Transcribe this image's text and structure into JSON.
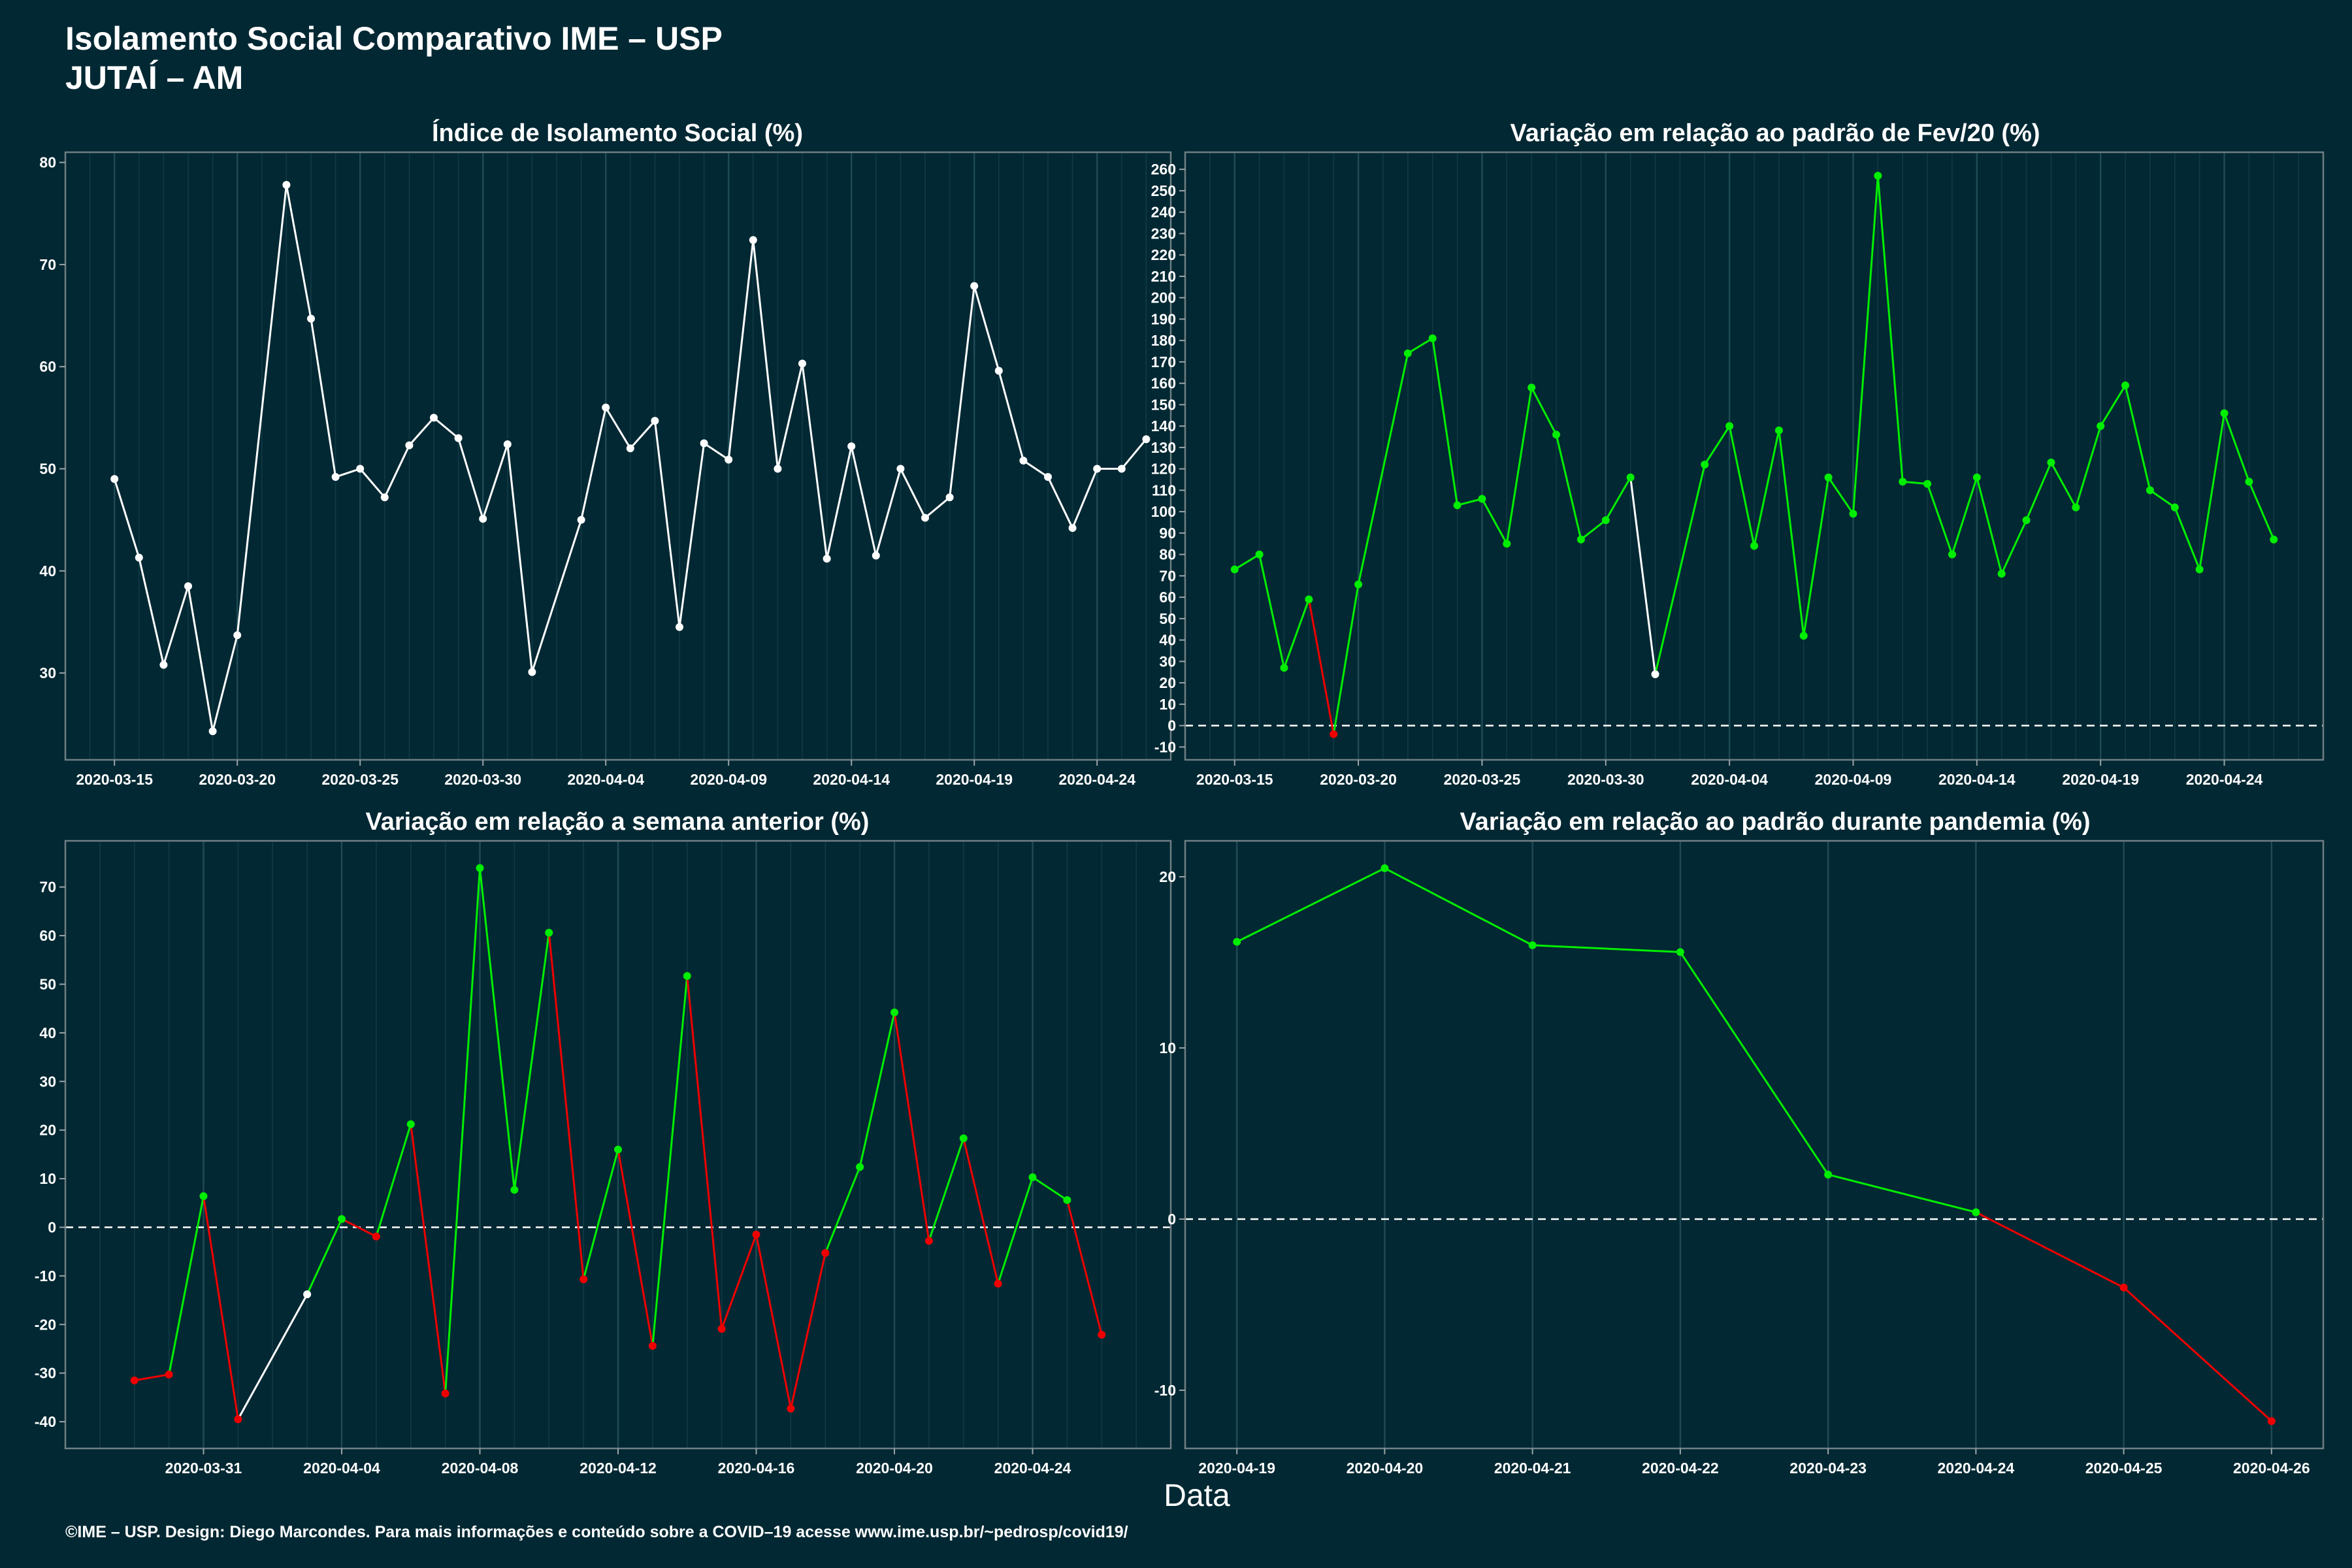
{
  "header": {
    "title": "Isolamento Social Comparativo IME – USP",
    "subtitle": "JUTAÍ – AM"
  },
  "xlabel": "Data",
  "footer": "©IME – USP. Design: Diego Marcondes. Para mais informações e conteúdo sobre a COVID–19 acesse www.ime.usp.br/~pedrosp/covid19/",
  "colors": {
    "background": "#022833",
    "positive": "#00ee00",
    "negative": "#ee0000",
    "neutral": "#ffffff",
    "panel_border": "#6f7f84"
  },
  "chart_data": [
    {
      "id": "isolamento",
      "type": "line",
      "title": "Índice de Isolamento Social (%)",
      "start_date": "2020-03-15",
      "x": [
        "2020-03-15",
        "2020-03-16",
        "2020-03-17",
        "2020-03-18",
        "2020-03-19",
        "2020-03-20",
        "2020-03-22",
        "2020-03-23",
        "2020-03-24",
        "2020-03-25",
        "2020-03-26",
        "2020-03-27",
        "2020-03-28",
        "2020-03-29",
        "2020-03-30",
        "2020-03-31",
        "2020-04-01",
        "2020-04-03",
        "2020-04-04",
        "2020-04-05",
        "2020-04-06",
        "2020-04-07",
        "2020-04-08",
        "2020-04-09",
        "2020-04-10",
        "2020-04-11",
        "2020-04-12",
        "2020-04-13",
        "2020-04-14",
        "2020-04-15",
        "2020-04-16",
        "2020-04-17",
        "2020-04-18",
        "2020-04-19",
        "2020-04-20",
        "2020-04-21",
        "2020-04-22",
        "2020-04-23",
        "2020-04-24",
        "2020-04-25",
        "2020-04-26"
      ],
      "values": [
        49.0,
        41.3,
        30.8,
        38.5,
        24.3,
        33.7,
        77.8,
        64.7,
        49.2,
        50.0,
        47.2,
        52.3,
        55.0,
        53.0,
        45.1,
        52.4,
        30.1,
        45.0,
        56.0,
        52.0,
        54.7,
        34.5,
        52.5,
        50.9,
        72.4,
        50.0,
        60.3,
        41.2,
        52.2,
        41.5,
        50.0,
        45.2,
        47.2,
        67.9,
        59.6,
        50.8,
        49.2,
        44.2,
        50.0,
        50.0,
        52.9
      ],
      "colors": [
        "#ffffff",
        "#ffffff",
        "#ffffff",
        "#ffffff",
        "#ffffff",
        "#ffffff",
        "#ffffff",
        "#ffffff",
        "#ffffff",
        "#ffffff",
        "#ffffff",
        "#ffffff",
        "#ffffff",
        "#ffffff",
        "#ffffff",
        "#ffffff",
        "#ffffff",
        "#ffffff",
        "#ffffff",
        "#ffffff",
        "#ffffff",
        "#ffffff",
        "#ffffff",
        "#ffffff",
        "#ffffff",
        "#ffffff",
        "#ffffff",
        "#ffffff",
        "#ffffff",
        "#ffffff",
        "#ffffff",
        "#ffffff",
        "#ffffff",
        "#ffffff",
        "#ffffff",
        "#ffffff",
        "#ffffff",
        "#ffffff",
        "#ffffff",
        "#ffffff",
        "#ffffff"
      ],
      "xlim": [
        "2020-03-13",
        "2020-04-27"
      ],
      "ylim": [
        21.5,
        81
      ],
      "yticks": [
        30,
        40,
        50,
        60,
        70,
        80
      ],
      "xticks": [
        "2020-03-15",
        "2020-03-20",
        "2020-03-25",
        "2020-03-30",
        "2020-04-04",
        "2020-04-09",
        "2020-04-14",
        "2020-04-19",
        "2020-04-24"
      ],
      "zero_line": false
    },
    {
      "id": "fev20",
      "type": "line",
      "title": "Variação em relação ao padrão de Fev/20 (%)",
      "start_date": "2020-03-15",
      "x": [
        "2020-03-15",
        "2020-03-16",
        "2020-03-17",
        "2020-03-18",
        "2020-03-19",
        "2020-03-20",
        "2020-03-22",
        "2020-03-23",
        "2020-03-24",
        "2020-03-25",
        "2020-03-26",
        "2020-03-27",
        "2020-03-28",
        "2020-03-29",
        "2020-03-30",
        "2020-03-31",
        "2020-04-01",
        "2020-04-03",
        "2020-04-04",
        "2020-04-05",
        "2020-04-06",
        "2020-04-07",
        "2020-04-08",
        "2020-04-09",
        "2020-04-10",
        "2020-04-11",
        "2020-04-12",
        "2020-04-13",
        "2020-04-14",
        "2020-04-15",
        "2020-04-16",
        "2020-04-17",
        "2020-04-18",
        "2020-04-19",
        "2020-04-20",
        "2020-04-21",
        "2020-04-22",
        "2020-04-23",
        "2020-04-24",
        "2020-04-25",
        "2020-04-26"
      ],
      "values": [
        73,
        80,
        27,
        59,
        -4,
        66,
        174,
        181,
        103,
        106,
        85,
        158,
        136,
        87,
        96,
        116,
        24,
        122,
        140,
        84,
        138,
        42,
        116,
        99,
        257,
        114,
        113,
        80,
        116,
        71,
        96,
        123,
        102,
        140,
        159,
        110,
        102,
        73,
        146,
        114,
        87
      ],
      "colors": [
        "#00ee00",
        "#00ee00",
        "#00ee00",
        "#00ee00",
        "#ee0000",
        "#00ee00",
        "#00ee00",
        "#00ee00",
        "#00ee00",
        "#00ee00",
        "#00ee00",
        "#00ee00",
        "#00ee00",
        "#00ee00",
        "#00ee00",
        "#00ee00",
        "#ffffff",
        "#00ee00",
        "#00ee00",
        "#00ee00",
        "#00ee00",
        "#00ee00",
        "#00ee00",
        "#00ee00",
        "#00ee00",
        "#00ee00",
        "#00ee00",
        "#00ee00",
        "#00ee00",
        "#00ee00",
        "#00ee00",
        "#00ee00",
        "#00ee00",
        "#00ee00",
        "#00ee00",
        "#00ee00",
        "#00ee00",
        "#00ee00",
        "#00ee00",
        "#00ee00",
        "#00ee00"
      ],
      "xlim": [
        "2020-03-13",
        "2020-04-28"
      ],
      "ylim": [
        -16,
        268
      ],
      "yticks": [
        -10,
        0,
        10,
        20,
        30,
        40,
        50,
        60,
        70,
        80,
        90,
        100,
        110,
        120,
        130,
        140,
        150,
        160,
        170,
        180,
        190,
        200,
        210,
        220,
        230,
        240,
        250,
        260
      ],
      "xticks": [
        "2020-03-15",
        "2020-03-20",
        "2020-03-25",
        "2020-03-30",
        "2020-04-04",
        "2020-04-09",
        "2020-04-14",
        "2020-04-19",
        "2020-04-24"
      ],
      "zero_line": true
    },
    {
      "id": "semana",
      "type": "line",
      "title": "Variação em relação a semana anterior (%)",
      "start_date": "2020-03-29",
      "x": [
        "2020-03-29",
        "2020-03-30",
        "2020-03-31",
        "2020-04-01",
        "2020-04-03",
        "2020-04-04",
        "2020-04-05",
        "2020-04-06",
        "2020-04-07",
        "2020-04-08",
        "2020-04-09",
        "2020-04-10",
        "2020-04-11",
        "2020-04-12",
        "2020-04-13",
        "2020-04-14",
        "2020-04-15",
        "2020-04-16",
        "2020-04-17",
        "2020-04-18",
        "2020-04-19",
        "2020-04-20",
        "2020-04-21",
        "2020-04-22",
        "2020-04-23",
        "2020-04-24",
        "2020-04-25",
        "2020-04-26"
      ],
      "values": [
        -31.5,
        -30.3,
        6.4,
        -39.5,
        -13.8,
        1.7,
        -1.9,
        21.2,
        -34.2,
        73.9,
        7.7,
        60.6,
        -10.7,
        16.0,
        -24.4,
        51.7,
        -20.9,
        -1.5,
        -37.3,
        -5.3,
        12.4,
        44.2,
        -2.8,
        18.3,
        -11.6,
        10.3,
        5.6,
        -22.1
      ],
      "colors": [
        "#ee0000",
        "#ee0000",
        "#00ee00",
        "#ee0000",
        "#ffffff",
        "#00ee00",
        "#ee0000",
        "#00ee00",
        "#ee0000",
        "#00ee00",
        "#00ee00",
        "#00ee00",
        "#ee0000",
        "#00ee00",
        "#ee0000",
        "#00ee00",
        "#ee0000",
        "#ee0000",
        "#ee0000",
        "#ee0000",
        "#00ee00",
        "#00ee00",
        "#ee0000",
        "#00ee00",
        "#ee0000",
        "#00ee00",
        "#00ee00",
        "#ee0000"
      ],
      "xlim": [
        "2020-03-27",
        "2020-04-28"
      ],
      "ylim": [
        -45.5,
        79.5
      ],
      "yticks": [
        -40,
        -30,
        -20,
        -10,
        0,
        10,
        20,
        30,
        40,
        50,
        60,
        70
      ],
      "xticks": [
        "2020-03-31",
        "2020-04-04",
        "2020-04-08",
        "2020-04-12",
        "2020-04-16",
        "2020-04-20",
        "2020-04-24"
      ],
      "zero_line": true
    },
    {
      "id": "pandemia",
      "type": "line",
      "title": "Variação em relação ao padrão durante pandemia (%)",
      "start_date": "2020-04-19",
      "x": [
        "2020-04-19",
        "2020-04-20",
        "2020-04-21",
        "2020-04-22",
        "2020-04-23",
        "2020-04-24",
        "2020-04-25",
        "2020-04-26"
      ],
      "values": [
        16.2,
        20.5,
        16.0,
        15.6,
        2.6,
        0.4,
        -4.0,
        -11.8
      ],
      "colors": [
        "#00ee00",
        "#00ee00",
        "#00ee00",
        "#00ee00",
        "#00ee00",
        "#00ee00",
        "#ee0000",
        "#ee0000"
      ],
      "xlim": [
        "2020-04-18.65",
        "2020-04-26.35"
      ],
      "ylim": [
        -13.4,
        22.1
      ],
      "yticks": [
        -10,
        0,
        10,
        20
      ],
      "xticks": [
        "2020-04-19",
        "2020-04-20",
        "2020-04-21",
        "2020-04-22",
        "2020-04-23",
        "2020-04-24",
        "2020-04-25",
        "2020-04-26"
      ],
      "zero_line": true
    }
  ]
}
